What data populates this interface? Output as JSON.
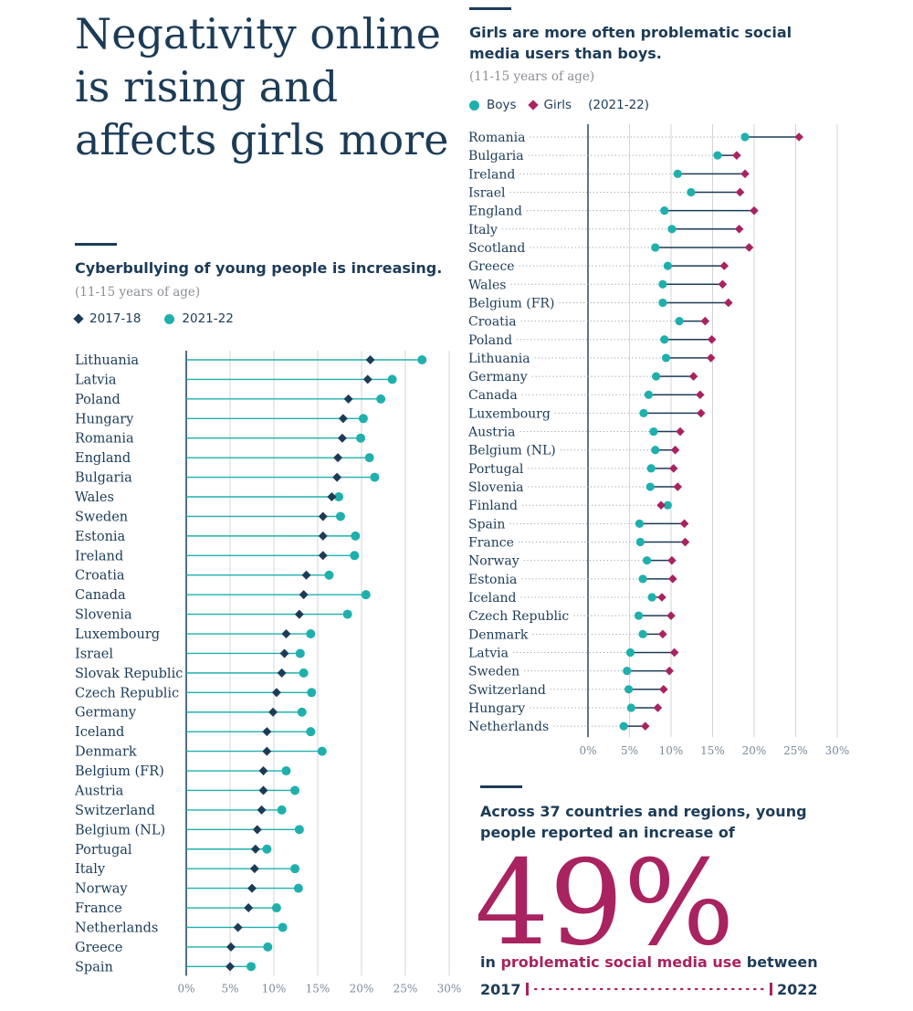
{
  "main_title": "Negativity online is rising and affects girls more",
  "left": {
    "subtitle": "Cyberbullying of young people is increasing.",
    "note": "(11-15 years of age)",
    "legend": [
      {
        "label": "2017-18",
        "color": "#1c3b57",
        "shape": "diamond"
      },
      {
        "label": "2021-22",
        "color": "#1fb0ad",
        "shape": "circle"
      }
    ]
  },
  "right": {
    "subtitle": "Girls are more often problematic social media users than boys.",
    "note": "(11-15 years of age)",
    "legend": [
      {
        "label": "Boys",
        "color": "#1fb0ad",
        "shape": "circle"
      },
      {
        "label": "Girls",
        "color": "#a8235f",
        "shape": "diamond"
      }
    ],
    "legend_year": "(2021-22)"
  },
  "callout": {
    "lead": "Across 37 countries and regions, young people reported an increase of",
    "value": "49%",
    "tail_pre": "in",
    "tail_highlight": "problematic social media use",
    "tail_post": "between",
    "year_start": "2017",
    "year_end": "2022",
    "accent": "#a8235f"
  },
  "chart_data": [
    {
      "type": "dot-plot",
      "title": "Cyberbullying of young people is increasing.",
      "xlim": [
        0,
        30
      ],
      "xticks": [
        "0%",
        "5%",
        "10%",
        "15%",
        "20%",
        "25%",
        "30%"
      ],
      "grid": true,
      "series_names": [
        "2017-18",
        "2021-22"
      ],
      "categories": [
        "Lithuania",
        "Latvia",
        "Poland",
        "Hungary",
        "Romania",
        "England",
        "Bulgaria",
        "Wales",
        "Sweden",
        "Estonia",
        "Ireland",
        "Croatia",
        "Canada",
        "Slovenia",
        "Luxembourg",
        "Israel",
        "Slovak Republic",
        "Czech Republic",
        "Germany",
        "Iceland",
        "Denmark",
        "Belgium (FR)",
        "Austria",
        "Switzerland",
        "Belgium (NL)",
        "Portugal",
        "Italy",
        "Norway",
        "France",
        "Netherlands",
        "Greece",
        "Spain"
      ],
      "series": [
        {
          "name": "2017-18",
          "values": [
            21,
            20.7,
            18.5,
            17.9,
            17.8,
            17.3,
            17.2,
            16.6,
            15.6,
            15.6,
            15.6,
            13.7,
            13.4,
            12.9,
            11.4,
            11.2,
            10.9,
            10.3,
            9.9,
            9.2,
            9.2,
            8.8,
            8.8,
            8.6,
            8.1,
            7.9,
            7.8,
            7.5,
            7.1,
            5.9,
            5.1,
            5.0
          ]
        },
        {
          "name": "2021-22",
          "values": [
            26.9,
            23.5,
            22.2,
            20.2,
            19.9,
            20.9,
            21.5,
            17.4,
            17.6,
            19.3,
            19.2,
            16.3,
            20.5,
            18.4,
            14.2,
            13.0,
            13.4,
            14.3,
            13.2,
            14.2,
            15.5,
            11.4,
            12.4,
            10.9,
            12.9,
            9.2,
            12.4,
            12.8,
            10.3,
            11.0,
            9.3,
            7.4
          ]
        }
      ]
    },
    {
      "type": "dot-plot",
      "title": "Girls are more often problematic social media users than boys.",
      "xlim": [
        0,
        30
      ],
      "xticks": [
        "0%",
        "5%",
        "10%",
        "15%",
        "20%",
        "25%",
        "30%"
      ],
      "grid": true,
      "series_names": [
        "Boys",
        "Girls"
      ],
      "categories": [
        "Romania",
        "Bulgaria",
        "Ireland",
        "Israel",
        "England",
        "Italy",
        "Scotland",
        "Greece",
        "Wales",
        "Belgium (FR)",
        "Croatia",
        "Poland",
        "Lithuania",
        "Germany",
        "Canada",
        "Luxembourg",
        "Austria",
        "Belgium (NL)",
        "Portugal",
        "Slovenia",
        "Finland",
        "Spain",
        "France",
        "Norway",
        "Estonia",
        "Iceland",
        "Czech Republic",
        "Denmark",
        "Latvia",
        "Sweden",
        "Switzerland",
        "Hungary",
        "Netherlands"
      ],
      "series": [
        {
          "name": "Boys",
          "values": [
            18.9,
            15.6,
            10.8,
            12.4,
            9.2,
            10.1,
            8.1,
            9.6,
            9.0,
            9.0,
            11.0,
            9.2,
            9.4,
            8.2,
            7.3,
            6.7,
            7.9,
            8.1,
            7.6,
            7.5,
            9.6,
            6.2,
            6.3,
            7.1,
            6.6,
            7.7,
            6.1,
            6.6,
            5.1,
            4.7,
            4.9,
            5.2,
            4.3
          ]
        },
        {
          "name": "Girls",
          "values": [
            25.4,
            17.9,
            18.9,
            18.3,
            20.0,
            18.2,
            19.4,
            16.4,
            16.2,
            16.9,
            14.1,
            14.9,
            14.8,
            12.7,
            13.5,
            13.6,
            11.1,
            10.5,
            10.3,
            10.8,
            8.8,
            11.6,
            11.7,
            10.1,
            10.2,
            8.9,
            10.0,
            9.0,
            10.4,
            9.8,
            9.1,
            8.4,
            6.9
          ]
        }
      ]
    }
  ]
}
